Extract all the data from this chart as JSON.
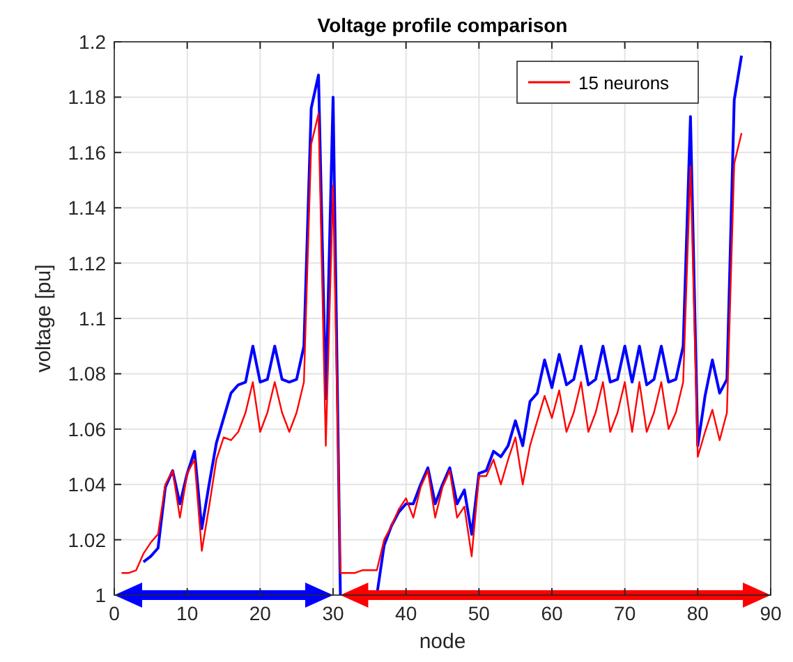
{
  "chart_data": {
    "type": "line",
    "title": "Voltage profile comparison",
    "xlabel": "node",
    "ylabel": "voltage [pu]",
    "x": [
      1,
      2,
      3,
      4,
      5,
      6,
      7,
      8,
      9,
      10,
      11,
      12,
      13,
      14,
      15,
      16,
      17,
      18,
      19,
      20,
      21,
      22,
      23,
      24,
      25,
      26,
      27,
      28,
      29,
      30,
      31,
      32,
      33,
      34,
      35,
      36,
      37,
      38,
      39,
      40,
      41,
      42,
      43,
      44,
      45,
      46,
      47,
      48,
      49,
      50,
      51,
      52,
      53,
      54,
      55,
      56,
      57,
      58,
      59,
      60,
      61,
      62,
      63,
      64,
      65,
      66,
      67,
      68,
      69,
      70,
      71,
      72,
      73,
      74,
      75,
      76,
      77,
      78,
      79,
      80,
      81,
      82,
      83,
      84,
      85,
      86
    ],
    "series": [
      {
        "color": "#0000ff",
        "values": [
          null,
          null,
          null,
          1.012,
          1.014,
          1.017,
          1.039,
          1.045,
          1.033,
          1.044,
          1.052,
          1.024,
          1.04,
          1.055,
          1.064,
          1.073,
          1.076,
          1.077,
          1.09,
          1.077,
          1.078,
          1.09,
          1.078,
          1.077,
          1.078,
          1.09,
          1.176,
          1.188,
          1.071,
          1.18,
          1.0,
          null,
          null,
          null,
          null,
          1.0,
          1.018,
          1.025,
          1.03,
          1.033,
          1.033,
          1.04,
          1.046,
          1.033,
          1.04,
          1.046,
          1.033,
          1.038,
          1.022,
          1.044,
          1.045,
          1.052,
          1.05,
          1.054,
          1.063,
          1.054,
          1.07,
          1.073,
          1.085,
          1.075,
          1.087,
          1.076,
          1.078,
          1.09,
          1.076,
          1.078,
          1.09,
          1.077,
          1.078,
          1.09,
          1.077,
          1.09,
          1.076,
          1.078,
          1.09,
          1.077,
          1.078,
          1.09,
          1.173,
          1.054,
          1.072,
          1.085,
          1.073,
          1.078,
          1.179,
          1.195
        ]
      },
      {
        "name": "15 neurons",
        "color": "#ff0000",
        "values": [
          1.008,
          1.008,
          1.009,
          1.015,
          1.019,
          1.022,
          1.04,
          1.045,
          1.028,
          1.044,
          1.049,
          1.016,
          1.032,
          1.049,
          1.057,
          1.056,
          1.059,
          1.066,
          1.077,
          1.059,
          1.066,
          1.077,
          1.066,
          1.059,
          1.066,
          1.077,
          1.163,
          1.174,
          1.054,
          1.148,
          1.008,
          1.008,
          1.008,
          1.009,
          1.009,
          1.009,
          1.02,
          1.025,
          1.031,
          1.035,
          1.028,
          1.039,
          1.045,
          1.028,
          1.039,
          1.045,
          1.028,
          1.032,
          1.014,
          1.043,
          1.043,
          1.049,
          1.04,
          1.049,
          1.057,
          1.04,
          1.054,
          1.063,
          1.072,
          1.064,
          1.074,
          1.059,
          1.066,
          1.077,
          1.059,
          1.066,
          1.077,
          1.059,
          1.066,
          1.077,
          1.059,
          1.077,
          1.059,
          1.066,
          1.077,
          1.06,
          1.066,
          1.077,
          1.155,
          1.05,
          1.059,
          1.067,
          1.056,
          1.066,
          1.156,
          1.167
        ]
      }
    ],
    "xlim": [
      0,
      90
    ],
    "xticks": [
      0,
      10,
      20,
      30,
      40,
      50,
      60,
      70,
      80,
      90
    ],
    "ylim": [
      1,
      1.2
    ],
    "yticks": [
      1,
      1.02,
      1.04,
      1.06,
      1.08,
      1.1,
      1.12,
      1.14,
      1.16,
      1.18,
      1.2
    ],
    "grid": true,
    "legend": "top right"
  }
}
